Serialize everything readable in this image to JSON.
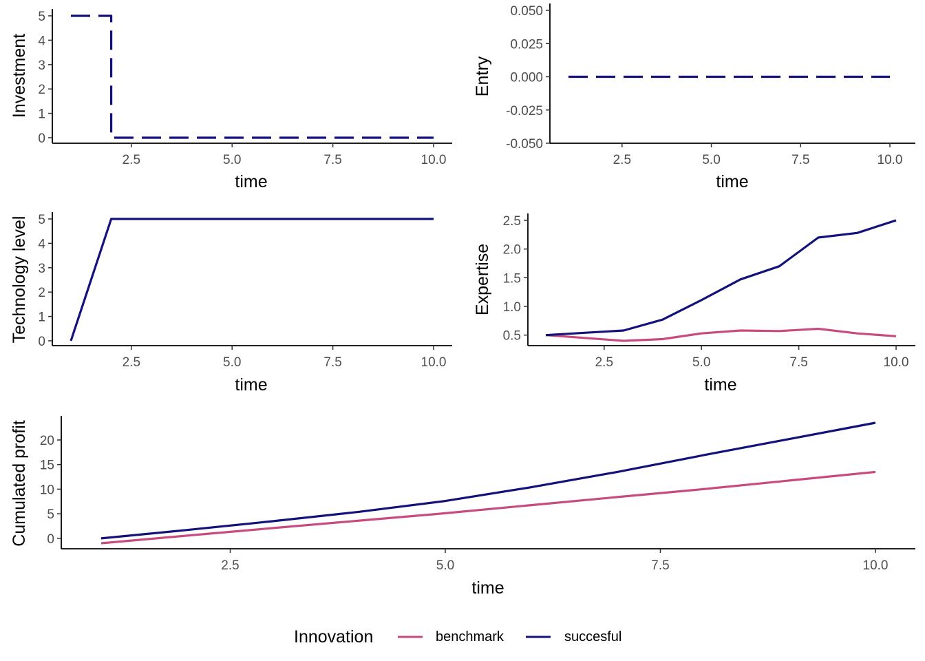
{
  "legend": {
    "title": "Innovation",
    "position": "bottom",
    "entries": [
      {
        "label": "benchmark",
        "color": "#C84B7E"
      },
      {
        "label": "succesful",
        "color": "#12127A"
      }
    ]
  },
  "chart_data": [
    {
      "id": "investment",
      "type": "line",
      "linestyle": "dashed",
      "xlabel": "time",
      "ylabel": "Investment",
      "xlim": [
        1,
        10
      ],
      "ylim": [
        0,
        5
      ],
      "xticks": [
        2.5,
        5.0,
        7.5,
        10.0
      ],
      "xtick_labels": [
        "2.5",
        "5.0",
        "7.5",
        "10.0"
      ],
      "yticks": [
        0,
        1,
        2,
        3,
        4,
        5
      ],
      "ytick_labels": [
        "0",
        "1",
        "2",
        "3",
        "4",
        "5"
      ],
      "grid": false,
      "series": [
        {
          "name": "succesful",
          "step": true,
          "x": [
            1,
            2,
            3,
            4,
            5,
            6,
            7,
            8,
            9,
            10
          ],
          "y": [
            5,
            0,
            0,
            0,
            0,
            0,
            0,
            0,
            0,
            0
          ]
        }
      ]
    },
    {
      "id": "entry",
      "type": "line",
      "linestyle": "dashed",
      "xlabel": "time",
      "ylabel": "Entry",
      "xlim": [
        1,
        10
      ],
      "ylim": [
        -0.05,
        0.05
      ],
      "xticks": [
        2.5,
        5.0,
        7.5,
        10.0
      ],
      "xtick_labels": [
        "2.5",
        "5.0",
        "7.5",
        "10.0"
      ],
      "yticks": [
        -0.05,
        -0.025,
        0,
        0.025,
        0.05
      ],
      "ytick_labels": [
        "-0.050",
        "-0.025",
        "0.000",
        "0.025",
        "0.050"
      ],
      "grid": false,
      "series": [
        {
          "name": "succesful",
          "x": [
            1,
            10
          ],
          "y": [
            0,
            0
          ]
        }
      ]
    },
    {
      "id": "technology",
      "type": "line",
      "xlabel": "time",
      "ylabel": "Technology level",
      "xlim": [
        1,
        10
      ],
      "ylim": [
        0,
        5
      ],
      "xticks": [
        2.5,
        5.0,
        7.5,
        10.0
      ],
      "xtick_labels": [
        "2.5",
        "5.0",
        "7.5",
        "10.0"
      ],
      "yticks": [
        0,
        1,
        2,
        3,
        4,
        5
      ],
      "ytick_labels": [
        "0",
        "1",
        "2",
        "3",
        "4",
        "5"
      ],
      "grid": false,
      "series": [
        {
          "name": "succesful",
          "x": [
            1,
            2,
            3,
            4,
            5,
            6,
            7,
            8,
            9,
            10
          ],
          "y": [
            0,
            5,
            5,
            5,
            5,
            5,
            5,
            5,
            5,
            5
          ]
        }
      ]
    },
    {
      "id": "expertise",
      "type": "line",
      "xlabel": "time",
      "ylabel": "Expertise",
      "xlim": [
        1,
        10
      ],
      "ylim": [
        0.4,
        2.5
      ],
      "xticks": [
        2.5,
        5.0,
        7.5,
        10.0
      ],
      "xtick_labels": [
        "2.5",
        "5.0",
        "7.5",
        "10.0"
      ],
      "yticks": [
        0.5,
        1.0,
        1.5,
        2.0,
        2.5
      ],
      "ytick_labels": [
        "0.5",
        "1.0",
        "1.5",
        "2.0",
        "2.5"
      ],
      "grid": false,
      "series": [
        {
          "name": "benchmark",
          "x": [
            1,
            2,
            3,
            4,
            5,
            6,
            7,
            8,
            9,
            10
          ],
          "y": [
            0.5,
            0.45,
            0.4,
            0.43,
            0.53,
            0.58,
            0.57,
            0.61,
            0.53,
            0.48
          ]
        },
        {
          "name": "succesful",
          "x": [
            1,
            2,
            3,
            4,
            5,
            6,
            7,
            8,
            9,
            10
          ],
          "y": [
            0.5,
            0.54,
            0.58,
            0.77,
            1.11,
            1.47,
            1.7,
            2.2,
            2.28,
            2.5
          ]
        }
      ]
    },
    {
      "id": "profit",
      "type": "line",
      "xlabel": "time",
      "ylabel": "Cumulated profit",
      "xlim": [
        1,
        10
      ],
      "ylim": [
        -1,
        23.5
      ],
      "xticks": [
        2.5,
        5.0,
        7.5,
        10.0
      ],
      "xtick_labels": [
        "2.5",
        "5.0",
        "7.5",
        "10.0"
      ],
      "yticks": [
        0,
        5,
        10,
        15,
        20
      ],
      "ytick_labels": [
        "0",
        "5",
        "10",
        "15",
        "20"
      ],
      "grid": false,
      "series": [
        {
          "name": "benchmark",
          "x": [
            1,
            2,
            3,
            4,
            5,
            6,
            7,
            8,
            9,
            10
          ],
          "y": [
            -1,
            0.55,
            2.1,
            3.6,
            5.1,
            6.75,
            8.4,
            10.0,
            11.75,
            13.5
          ]
        },
        {
          "name": "succesful",
          "x": [
            1,
            2,
            3,
            4,
            5,
            6,
            7,
            8,
            9,
            10
          ],
          "y": [
            0,
            1.7,
            3.5,
            5.4,
            7.6,
            10.4,
            13.5,
            16.9,
            20.2,
            23.5
          ]
        }
      ]
    }
  ]
}
